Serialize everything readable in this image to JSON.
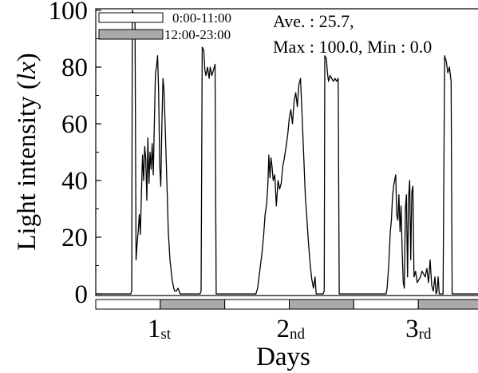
{
  "chart_data": {
    "type": "line",
    "ylabel_main": "Light intensity (",
    "ylabel_unit": "lx",
    "ylabel_close": ")",
    "xlabel": "Days",
    "ylim": [
      0,
      100
    ],
    "xlim": [
      0,
      72
    ],
    "yticks": [
      "0",
      "20",
      "40",
      "60",
      "80",
      "100"
    ],
    "ytick_values": [
      0,
      20,
      40,
      60,
      80,
      100
    ],
    "days": [
      {
        "num": "1",
        "sup": "st",
        "center": 12
      },
      {
        "num": "2",
        "sup": "nd",
        "center": 36
      },
      {
        "num": "3",
        "sup": "rd",
        "center": 60
      }
    ],
    "legend": [
      {
        "label": "0:00-11:00",
        "fill": "#ffffff"
      },
      {
        "label": "12:00-23:00",
        "fill": "#aaaaaa"
      }
    ],
    "stats": {
      "line1": "Ave. : 25.7,",
      "line2": "Max : 100.0, Min : 0.0"
    },
    "period_bar": [
      {
        "start": 0,
        "end": 12,
        "fill": "#ffffff"
      },
      {
        "start": 12,
        "end": 24,
        "fill": "#aaaaaa"
      },
      {
        "start": 24,
        "end": 36,
        "fill": "#ffffff"
      },
      {
        "start": 36,
        "end": 48,
        "fill": "#aaaaaa"
      },
      {
        "start": 48,
        "end": 60,
        "fill": "#ffffff"
      },
      {
        "start": 60,
        "end": 72,
        "fill": "#aaaaaa"
      }
    ],
    "series": [
      {
        "line_color": "#000000",
        "points": [
          [
            0.0,
            0
          ],
          [
            6.5,
            0
          ],
          [
            6.7,
            1
          ],
          [
            6.8,
            100
          ],
          [
            7.1,
            98
          ],
          [
            7.3,
            96
          ],
          [
            7.5,
            12
          ],
          [
            7.7,
            18
          ],
          [
            7.9,
            22
          ],
          [
            8.1,
            28
          ],
          [
            8.3,
            21
          ],
          [
            8.5,
            36
          ],
          [
            8.7,
            49
          ],
          [
            8.9,
            40
          ],
          [
            9.1,
            52
          ],
          [
            9.3,
            48
          ],
          [
            9.5,
            33
          ],
          [
            9.7,
            55
          ],
          [
            9.9,
            39
          ],
          [
            10.1,
            50
          ],
          [
            10.3,
            44
          ],
          [
            10.5,
            53
          ],
          [
            10.7,
            42
          ],
          [
            10.9,
            60
          ],
          [
            11.1,
            78
          ],
          [
            11.3,
            80
          ],
          [
            11.5,
            84
          ],
          [
            11.7,
            71
          ],
          [
            11.9,
            45
          ],
          [
            12.1,
            38
          ],
          [
            12.3,
            60
          ],
          [
            12.5,
            76
          ],
          [
            12.7,
            72
          ],
          [
            12.9,
            60
          ],
          [
            13.1,
            48
          ],
          [
            13.3,
            35
          ],
          [
            13.5,
            22
          ],
          [
            13.8,
            12
          ],
          [
            14.2,
            5
          ],
          [
            14.5,
            2
          ],
          [
            14.7,
            1
          ],
          [
            15.0,
            1
          ],
          [
            15.3,
            2
          ],
          [
            15.7,
            0
          ],
          [
            19.4,
            0
          ],
          [
            19.6,
            1
          ],
          [
            19.8,
            87
          ],
          [
            20.1,
            86
          ],
          [
            20.3,
            79
          ],
          [
            20.5,
            77
          ],
          [
            20.8,
            80
          ],
          [
            21.1,
            76
          ],
          [
            21.3,
            80
          ],
          [
            21.6,
            77
          ],
          [
            21.9,
            79
          ],
          [
            22.2,
            81
          ],
          [
            22.4,
            0
          ],
          [
            29.8,
            0
          ],
          [
            30.1,
            2
          ],
          [
            30.5,
            8
          ],
          [
            30.9,
            14
          ],
          [
            31.2,
            20
          ],
          [
            31.5,
            28
          ],
          [
            31.8,
            32
          ],
          [
            32.0,
            38
          ],
          [
            32.2,
            49
          ],
          [
            32.4,
            41
          ],
          [
            32.6,
            48
          ],
          [
            32.8,
            45
          ],
          [
            33.0,
            40
          ],
          [
            33.3,
            42
          ],
          [
            33.6,
            31
          ],
          [
            33.9,
            40
          ],
          [
            34.2,
            37
          ],
          [
            34.5,
            39
          ],
          [
            34.8,
            45
          ],
          [
            35.1,
            48
          ],
          [
            35.4,
            52
          ],
          [
            35.7,
            56
          ],
          [
            36.0,
            62
          ],
          [
            36.3,
            65
          ],
          [
            36.6,
            60
          ],
          [
            36.9,
            68
          ],
          [
            37.2,
            71
          ],
          [
            37.5,
            66
          ],
          [
            37.8,
            74
          ],
          [
            38.1,
            76
          ],
          [
            38.4,
            62
          ],
          [
            38.7,
            48
          ],
          [
            39.0,
            34
          ],
          [
            39.3,
            26
          ],
          [
            39.6,
            17
          ],
          [
            39.9,
            10
          ],
          [
            40.2,
            5
          ],
          [
            40.5,
            2
          ],
          [
            40.8,
            6
          ],
          [
            41.0,
            0
          ],
          [
            42.3,
            0
          ],
          [
            42.5,
            1
          ],
          [
            42.6,
            84
          ],
          [
            42.9,
            83
          ],
          [
            43.1,
            78
          ],
          [
            43.3,
            75
          ],
          [
            43.6,
            77
          ],
          [
            43.9,
            76
          ],
          [
            44.2,
            75
          ],
          [
            44.5,
            76
          ],
          [
            44.8,
            75
          ],
          [
            45.1,
            76
          ],
          [
            45.3,
            0
          ],
          [
            54.0,
            0
          ],
          [
            54.2,
            2
          ],
          [
            54.5,
            10
          ],
          [
            54.8,
            22
          ],
          [
            55.0,
            26
          ],
          [
            55.2,
            34
          ],
          [
            55.4,
            38
          ],
          [
            55.6,
            40
          ],
          [
            55.8,
            42
          ],
          [
            56.0,
            28
          ],
          [
            56.2,
            26
          ],
          [
            56.4,
            35
          ],
          [
            56.6,
            22
          ],
          [
            56.8,
            31
          ],
          [
            57.0,
            15
          ],
          [
            57.2,
            4
          ],
          [
            57.4,
            2
          ],
          [
            57.6,
            30
          ],
          [
            57.8,
            35
          ],
          [
            58.0,
            6
          ],
          [
            58.2,
            34
          ],
          [
            58.4,
            40
          ],
          [
            58.6,
            12
          ],
          [
            58.8,
            36
          ],
          [
            59.0,
            38
          ],
          [
            59.2,
            6
          ],
          [
            59.5,
            8
          ],
          [
            59.8,
            4
          ],
          [
            60.1,
            5
          ],
          [
            60.4,
            6
          ],
          [
            60.7,
            8
          ],
          [
            61.0,
            7
          ],
          [
            61.3,
            6
          ],
          [
            61.6,
            9
          ],
          [
            61.9,
            4
          ],
          [
            62.2,
            12
          ],
          [
            62.5,
            3
          ],
          [
            62.8,
            1
          ],
          [
            63.1,
            6
          ],
          [
            63.3,
            0
          ],
          [
            63.5,
            1
          ],
          [
            63.7,
            6
          ],
          [
            63.9,
            0
          ],
          [
            64.2,
            0
          ],
          [
            64.6,
            0
          ],
          [
            64.9,
            84
          ],
          [
            65.2,
            82
          ],
          [
            65.5,
            78
          ],
          [
            65.8,
            80
          ],
          [
            66.1,
            75
          ],
          [
            66.3,
            0
          ],
          [
            71.9,
            0
          ]
        ]
      }
    ]
  }
}
